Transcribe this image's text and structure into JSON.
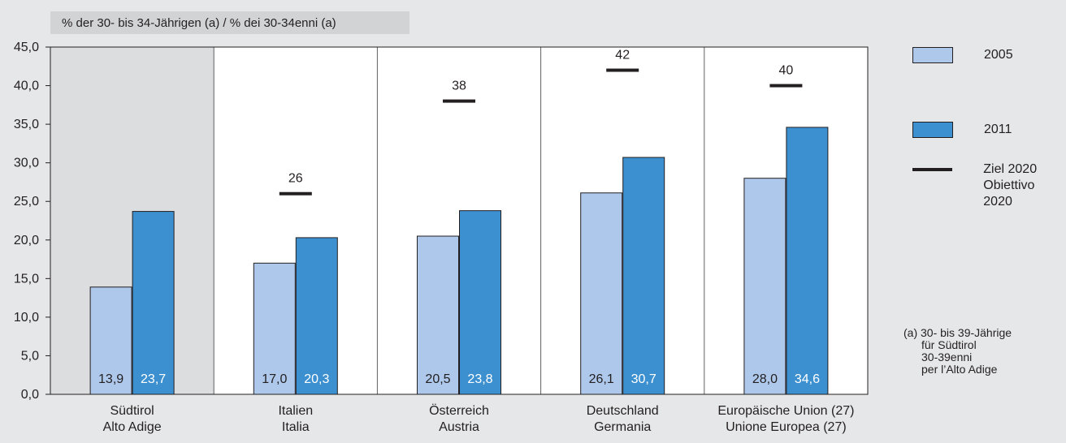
{
  "chart_data": {
    "type": "bar",
    "ylabel": "% der 30- bis 34-Jährigen (a) / % dei 30-34enni (a)",
    "ylim": [
      0,
      45
    ],
    "yticks": [
      "0,0",
      "5,0",
      "10,0",
      "15,0",
      "20,0",
      "25,0",
      "30,0",
      "35,0",
      "40,0",
      "45,0"
    ],
    "categories": [
      [
        "Südtirol",
        "Alto Adige"
      ],
      [
        "Italien",
        "Italia"
      ],
      [
        "Österreich",
        "Austria"
      ],
      [
        "Deutschland",
        "Germania"
      ],
      [
        "Europäische Union (27)",
        "Unione Europea (27)"
      ]
    ],
    "series": [
      {
        "name": "2005",
        "color": "#adc8ea",
        "values": [
          13.9,
          17.0,
          20.5,
          26.1,
          28.0
        ],
        "labels": [
          "13,9",
          "17,0",
          "20,5",
          "26,1",
          "28,0"
        ]
      },
      {
        "name": "2011",
        "color": "#3d90d0",
        "values": [
          23.7,
          20.3,
          23.8,
          30.7,
          34.6
        ],
        "labels": [
          "23,7",
          "20,3",
          "23,8",
          "30,7",
          "34,6"
        ]
      }
    ],
    "targets": {
      "name": [
        "Ziel 2020",
        "Obiettivo 2020"
      ],
      "values": [
        null,
        26,
        38,
        42,
        40
      ],
      "labels": [
        "",
        "26",
        "38",
        "42",
        "40"
      ]
    },
    "highlight_category": 0,
    "grid": true,
    "legend_position": "right"
  },
  "footnote": {
    "lines": [
      "(a)  30- bis 39-Jährige",
      "für Südtirol",
      "30-39enni",
      "per l’Alto Adige"
    ]
  },
  "colors": {
    "background": "#e6e7e8",
    "plot_background": "#ffffff",
    "highlight_background": "#dcdddf",
    "ink": "#231f20"
  }
}
